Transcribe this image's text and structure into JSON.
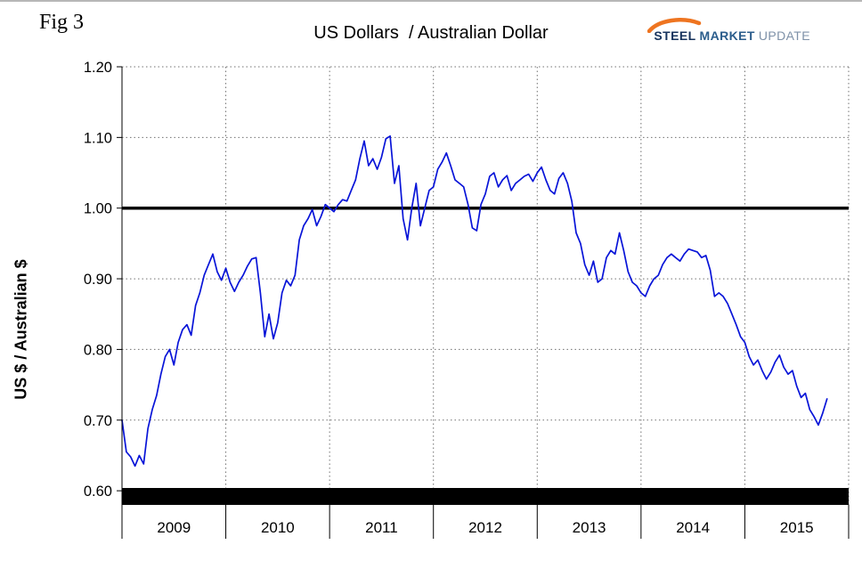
{
  "figure_label": "Fig 3",
  "logo": {
    "steel": "STEEL",
    "market": "MARKET",
    "update": "UPDATE",
    "swoosh_color": "#ee7420"
  },
  "chart_data": {
    "type": "line",
    "title": "US Dollars  / Australian Dollar",
    "xlabel": "",
    "ylabel": "US $ / Australian $",
    "legend": "none",
    "grid": "dotted",
    "line_color": "#0814d8",
    "reference_line": 1.0,
    "x_axis_range": [
      2009,
      2016
    ],
    "ylim": [
      0.58,
      1.2
    ],
    "y_ticks": [
      0.6,
      0.7,
      0.8,
      0.9,
      1.0,
      1.1,
      1.2
    ],
    "x_tick_labels": [
      "2009",
      "2010",
      "2011",
      "2012",
      "2013",
      "2014",
      "2015"
    ],
    "x_start": 2009.0,
    "x_step_years": 0.0416667,
    "values": [
      0.7,
      0.655,
      0.648,
      0.635,
      0.65,
      0.638,
      0.688,
      0.715,
      0.735,
      0.765,
      0.79,
      0.8,
      0.778,
      0.81,
      0.828,
      0.835,
      0.82,
      0.862,
      0.88,
      0.905,
      0.92,
      0.935,
      0.91,
      0.898,
      0.915,
      0.895,
      0.882,
      0.895,
      0.905,
      0.918,
      0.928,
      0.93,
      0.88,
      0.818,
      0.85,
      0.815,
      0.838,
      0.88,
      0.898,
      0.89,
      0.905,
      0.955,
      0.975,
      0.985,
      0.998,
      0.975,
      0.988,
      1.005,
      1.0,
      0.995,
      1.005,
      1.012,
      1.01,
      1.025,
      1.04,
      1.07,
      1.095,
      1.06,
      1.07,
      1.055,
      1.072,
      1.098,
      1.102,
      1.035,
      1.06,
      0.985,
      0.955,
      1.0,
      1.035,
      0.975,
      1.0,
      1.025,
      1.03,
      1.055,
      1.065,
      1.078,
      1.06,
      1.04,
      1.035,
      1.03,
      1.005,
      0.972,
      0.968,
      1.005,
      1.02,
      1.045,
      1.05,
      1.03,
      1.04,
      1.046,
      1.025,
      1.035,
      1.04,
      1.045,
      1.048,
      1.038,
      1.05,
      1.058,
      1.04,
      1.025,
      1.02,
      1.042,
      1.05,
      1.035,
      1.01,
      0.965,
      0.95,
      0.92,
      0.905,
      0.925,
      0.895,
      0.9,
      0.93,
      0.94,
      0.935,
      0.965,
      0.94,
      0.91,
      0.895,
      0.89,
      0.88,
      0.875,
      0.89,
      0.9,
      0.905,
      0.92,
      0.93,
      0.935,
      0.93,
      0.925,
      0.935,
      0.942,
      0.94,
      0.938,
      0.93,
      0.933,
      0.912,
      0.875,
      0.88,
      0.875,
      0.865,
      0.85,
      0.835,
      0.818,
      0.81,
      0.79,
      0.778,
      0.785,
      0.77,
      0.758,
      0.768,
      0.782,
      0.792,
      0.775,
      0.765,
      0.77,
      0.748,
      0.732,
      0.738,
      0.715,
      0.705,
      0.693,
      0.71,
      0.73
    ]
  }
}
